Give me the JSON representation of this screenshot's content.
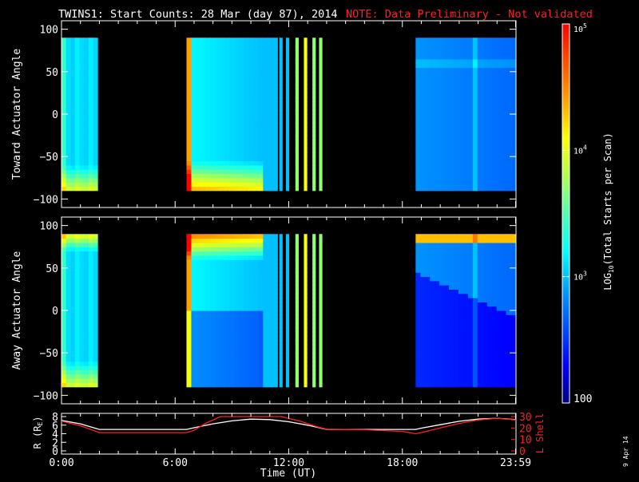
{
  "header": {
    "title": "TWINS1: Start Counts: 28 Mar (day  87), 2014",
    "note": "NOTE: Data Preliminary - Not validated",
    "note_color": "#ff2020"
  },
  "footer": {
    "time_label": "Time (UT)",
    "date_stamp": "9 Apr 14"
  },
  "colorbar": {
    "label_prefix": "LOG",
    "label_sub": "10",
    "label_suffix": "(Total Starts per Scan)",
    "ticks": [
      {
        "value": 100,
        "base": "100",
        "exp": ""
      },
      {
        "value": 1000,
        "base": "10",
        "exp": "3"
      },
      {
        "value": 10000,
        "base": "10",
        "exp": "4"
      },
      {
        "value": 100000,
        "base": "10",
        "exp": "5"
      }
    ],
    "colors": [
      "#00007f",
      "#0000ff",
      "#0050ff",
      "#00a0ff",
      "#00ffff",
      "#50ffb0",
      "#b0ff50",
      "#ffff00",
      "#ffa000",
      "#ff5000",
      "#ff0000"
    ]
  },
  "chart_data": [
    {
      "type": "heatmap",
      "ylabel": "Toward Actuator Angle",
      "ylim": [
        -110,
        110
      ],
      "yticks": [
        -100,
        -50,
        0,
        50,
        100
      ],
      "xlim": [
        0,
        24
      ],
      "data_windows_hours": [
        [
          0.0,
          1.9
        ],
        [
          6.6,
          11.4
        ],
        [
          18.7,
          23.98
        ]
      ],
      "narrow_strips_hours": [
        [
          11.5,
          11.65
        ],
        [
          11.85,
          12.0
        ],
        [
          12.35,
          12.5
        ],
        [
          12.8,
          12.95
        ],
        [
          13.25,
          13.4
        ],
        [
          13.6,
          13.75
        ]
      ],
      "angle_range": [
        -90,
        90
      ],
      "zscale": "log",
      "zlim": [
        100,
        100000
      ]
    },
    {
      "type": "heatmap",
      "ylabel": "Away Actuator Angle",
      "ylim": [
        -110,
        110
      ],
      "yticks": [
        -100,
        -50,
        0,
        50,
        100
      ],
      "xlim": [
        0,
        24
      ],
      "data_windows_hours": [
        [
          0.0,
          1.9
        ],
        [
          6.6,
          11.4
        ],
        [
          18.7,
          23.98
        ]
      ],
      "narrow_strips_hours": [
        [
          11.5,
          11.65
        ],
        [
          11.85,
          12.0
        ],
        [
          12.35,
          12.5
        ],
        [
          12.8,
          12.95
        ],
        [
          13.25,
          13.4
        ],
        [
          13.6,
          13.75
        ]
      ],
      "angle_range": [
        -90,
        90
      ],
      "zscale": "log",
      "zlim": [
        100,
        100000
      ]
    },
    {
      "type": "line",
      "ylabel_left": "R (R",
      "ylabel_left_sub": "E",
      "ylabel_left_end": ")",
      "ylabel_right": "L Shell",
      "ylim_left": [
        0,
        8
      ],
      "yticks_left": [
        0,
        2,
        4,
        6,
        8
      ],
      "ylim_right": [
        0,
        30
      ],
      "yticks_right": [
        0,
        10,
        20,
        30
      ],
      "xlim": [
        0,
        24
      ],
      "xticks": [
        {
          "value": 0,
          "label": "0:00"
        },
        {
          "value": 6,
          "label": "6:00"
        },
        {
          "value": 12,
          "label": "12:00"
        },
        {
          "value": 18,
          "label": "18:00"
        },
        {
          "value": 23.98,
          "label": "23:59"
        }
      ],
      "series": [
        {
          "color": "#ffffff",
          "axis": "left",
          "x": [
            0,
            1,
            2,
            3,
            4,
            5,
            6,
            6.6,
            7,
            8,
            9,
            10,
            11,
            12,
            13,
            14,
            15,
            16,
            17,
            18,
            18.7,
            19,
            20,
            21,
            22,
            23,
            24
          ],
          "y": [
            7.1,
            6.3,
            5.0,
            5.0,
            5.0,
            5.0,
            5.0,
            5.0,
            5.4,
            6.3,
            7.0,
            7.4,
            7.3,
            6.8,
            6.0,
            5.0,
            5.0,
            5.0,
            5.0,
            5.0,
            5.0,
            5.3,
            6.1,
            6.9,
            7.4,
            7.6,
            7.3
          ]
        },
        {
          "color": "#ff2020",
          "axis": "right",
          "x": [
            0,
            1,
            2,
            3,
            4,
            5,
            6,
            6.6,
            7,
            7.6,
            8.4,
            11.6,
            12.6,
            13.5,
            14,
            16,
            18,
            18.7,
            19,
            20,
            21,
            22,
            23,
            24
          ],
          "y": [
            26,
            22,
            16,
            16,
            16,
            16,
            16,
            16,
            18,
            24,
            30,
            30,
            26,
            21,
            19,
            18.5,
            17,
            15,
            16,
            20,
            24,
            27,
            28.5,
            27
          ]
        }
      ]
    }
  ]
}
